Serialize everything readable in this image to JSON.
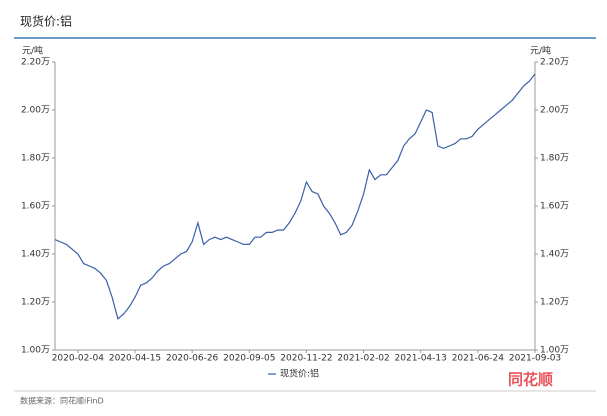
{
  "chart_data": {
    "type": "line",
    "title": "现货价:铝",
    "y_label": "元/吨",
    "y2_label": "元/吨",
    "source": "数据来源：同花顺iFinD",
    "watermark": "同花顺",
    "categories": [
      null,
      null,
      null,
      null,
      "2020-02-04",
      null,
      null,
      null,
      null,
      null,
      null,
      null,
      null,
      null,
      "2020-04-15",
      null,
      null,
      null,
      null,
      null,
      null,
      null,
      null,
      null,
      "2020-06-26",
      null,
      null,
      null,
      null,
      null,
      null,
      null,
      null,
      null,
      "2020-09-05",
      null,
      null,
      null,
      null,
      null,
      null,
      null,
      null,
      null,
      "2020-11-22",
      null,
      null,
      null,
      null,
      null,
      null,
      null,
      null,
      null,
      "2021-02-02",
      null,
      null,
      null,
      null,
      null,
      null,
      null,
      null,
      null,
      "2021-04-13",
      null,
      null,
      null,
      null,
      null,
      null,
      null,
      null,
      null,
      "2021-06-24",
      null,
      null,
      null,
      null,
      null,
      null,
      null,
      null,
      null,
      "2021-09-03"
    ],
    "series": [
      {
        "name": "现货价:铝",
        "color": "#3a5fa8",
        "values": [
          1.46,
          1.45,
          1.44,
          1.42,
          1.4,
          1.36,
          1.35,
          1.34,
          1.32,
          1.29,
          1.22,
          1.13,
          1.15,
          1.18,
          1.22,
          1.27,
          1.28,
          1.3,
          1.33,
          1.35,
          1.36,
          1.38,
          1.4,
          1.41,
          1.45,
          1.53,
          1.44,
          1.46,
          1.47,
          1.46,
          1.47,
          1.46,
          1.45,
          1.44,
          1.44,
          1.47,
          1.47,
          1.49,
          1.49,
          1.5,
          1.5,
          1.53,
          1.57,
          1.62,
          1.7,
          1.66,
          1.65,
          1.6,
          1.57,
          1.53,
          1.48,
          1.49,
          1.52,
          1.58,
          1.65,
          1.75,
          1.71,
          1.73,
          1.73,
          1.76,
          1.79,
          1.85,
          1.88,
          1.9,
          1.95,
          2.0,
          1.99,
          1.85,
          1.84,
          1.85,
          1.86,
          1.88,
          1.88,
          1.89,
          1.92,
          1.94,
          1.96,
          1.98,
          2.0,
          2.02,
          2.04,
          2.07,
          2.1,
          2.12,
          2.15
        ]
      }
    ],
    "ylim": [
      1.0,
      2.2
    ],
    "yticks": [
      {
        "value": 1.0,
        "label": "1.00万"
      },
      {
        "value": 1.2,
        "label": "1.20万"
      },
      {
        "value": 1.4,
        "label": "1.40万"
      },
      {
        "value": 1.6,
        "label": "1.60万"
      },
      {
        "value": 1.8,
        "label": "1.80万"
      },
      {
        "value": 2.0,
        "label": "2.00万"
      },
      {
        "value": 2.2,
        "label": "2.20万"
      }
    ],
    "y2lim": [
      1.0,
      2.2
    ],
    "y2ticks": [
      {
        "value": 1.0,
        "label": "1.00万"
      },
      {
        "value": 1.2,
        "label": "1.20万"
      },
      {
        "value": 1.4,
        "label": "1.40万"
      },
      {
        "value": 1.6,
        "label": "1.60万"
      },
      {
        "value": 1.8,
        "label": "1.80万"
      },
      {
        "value": 2.0,
        "label": "2.00万"
      },
      {
        "value": 2.2,
        "label": "2.20万"
      }
    ],
    "legend": "bottom"
  }
}
